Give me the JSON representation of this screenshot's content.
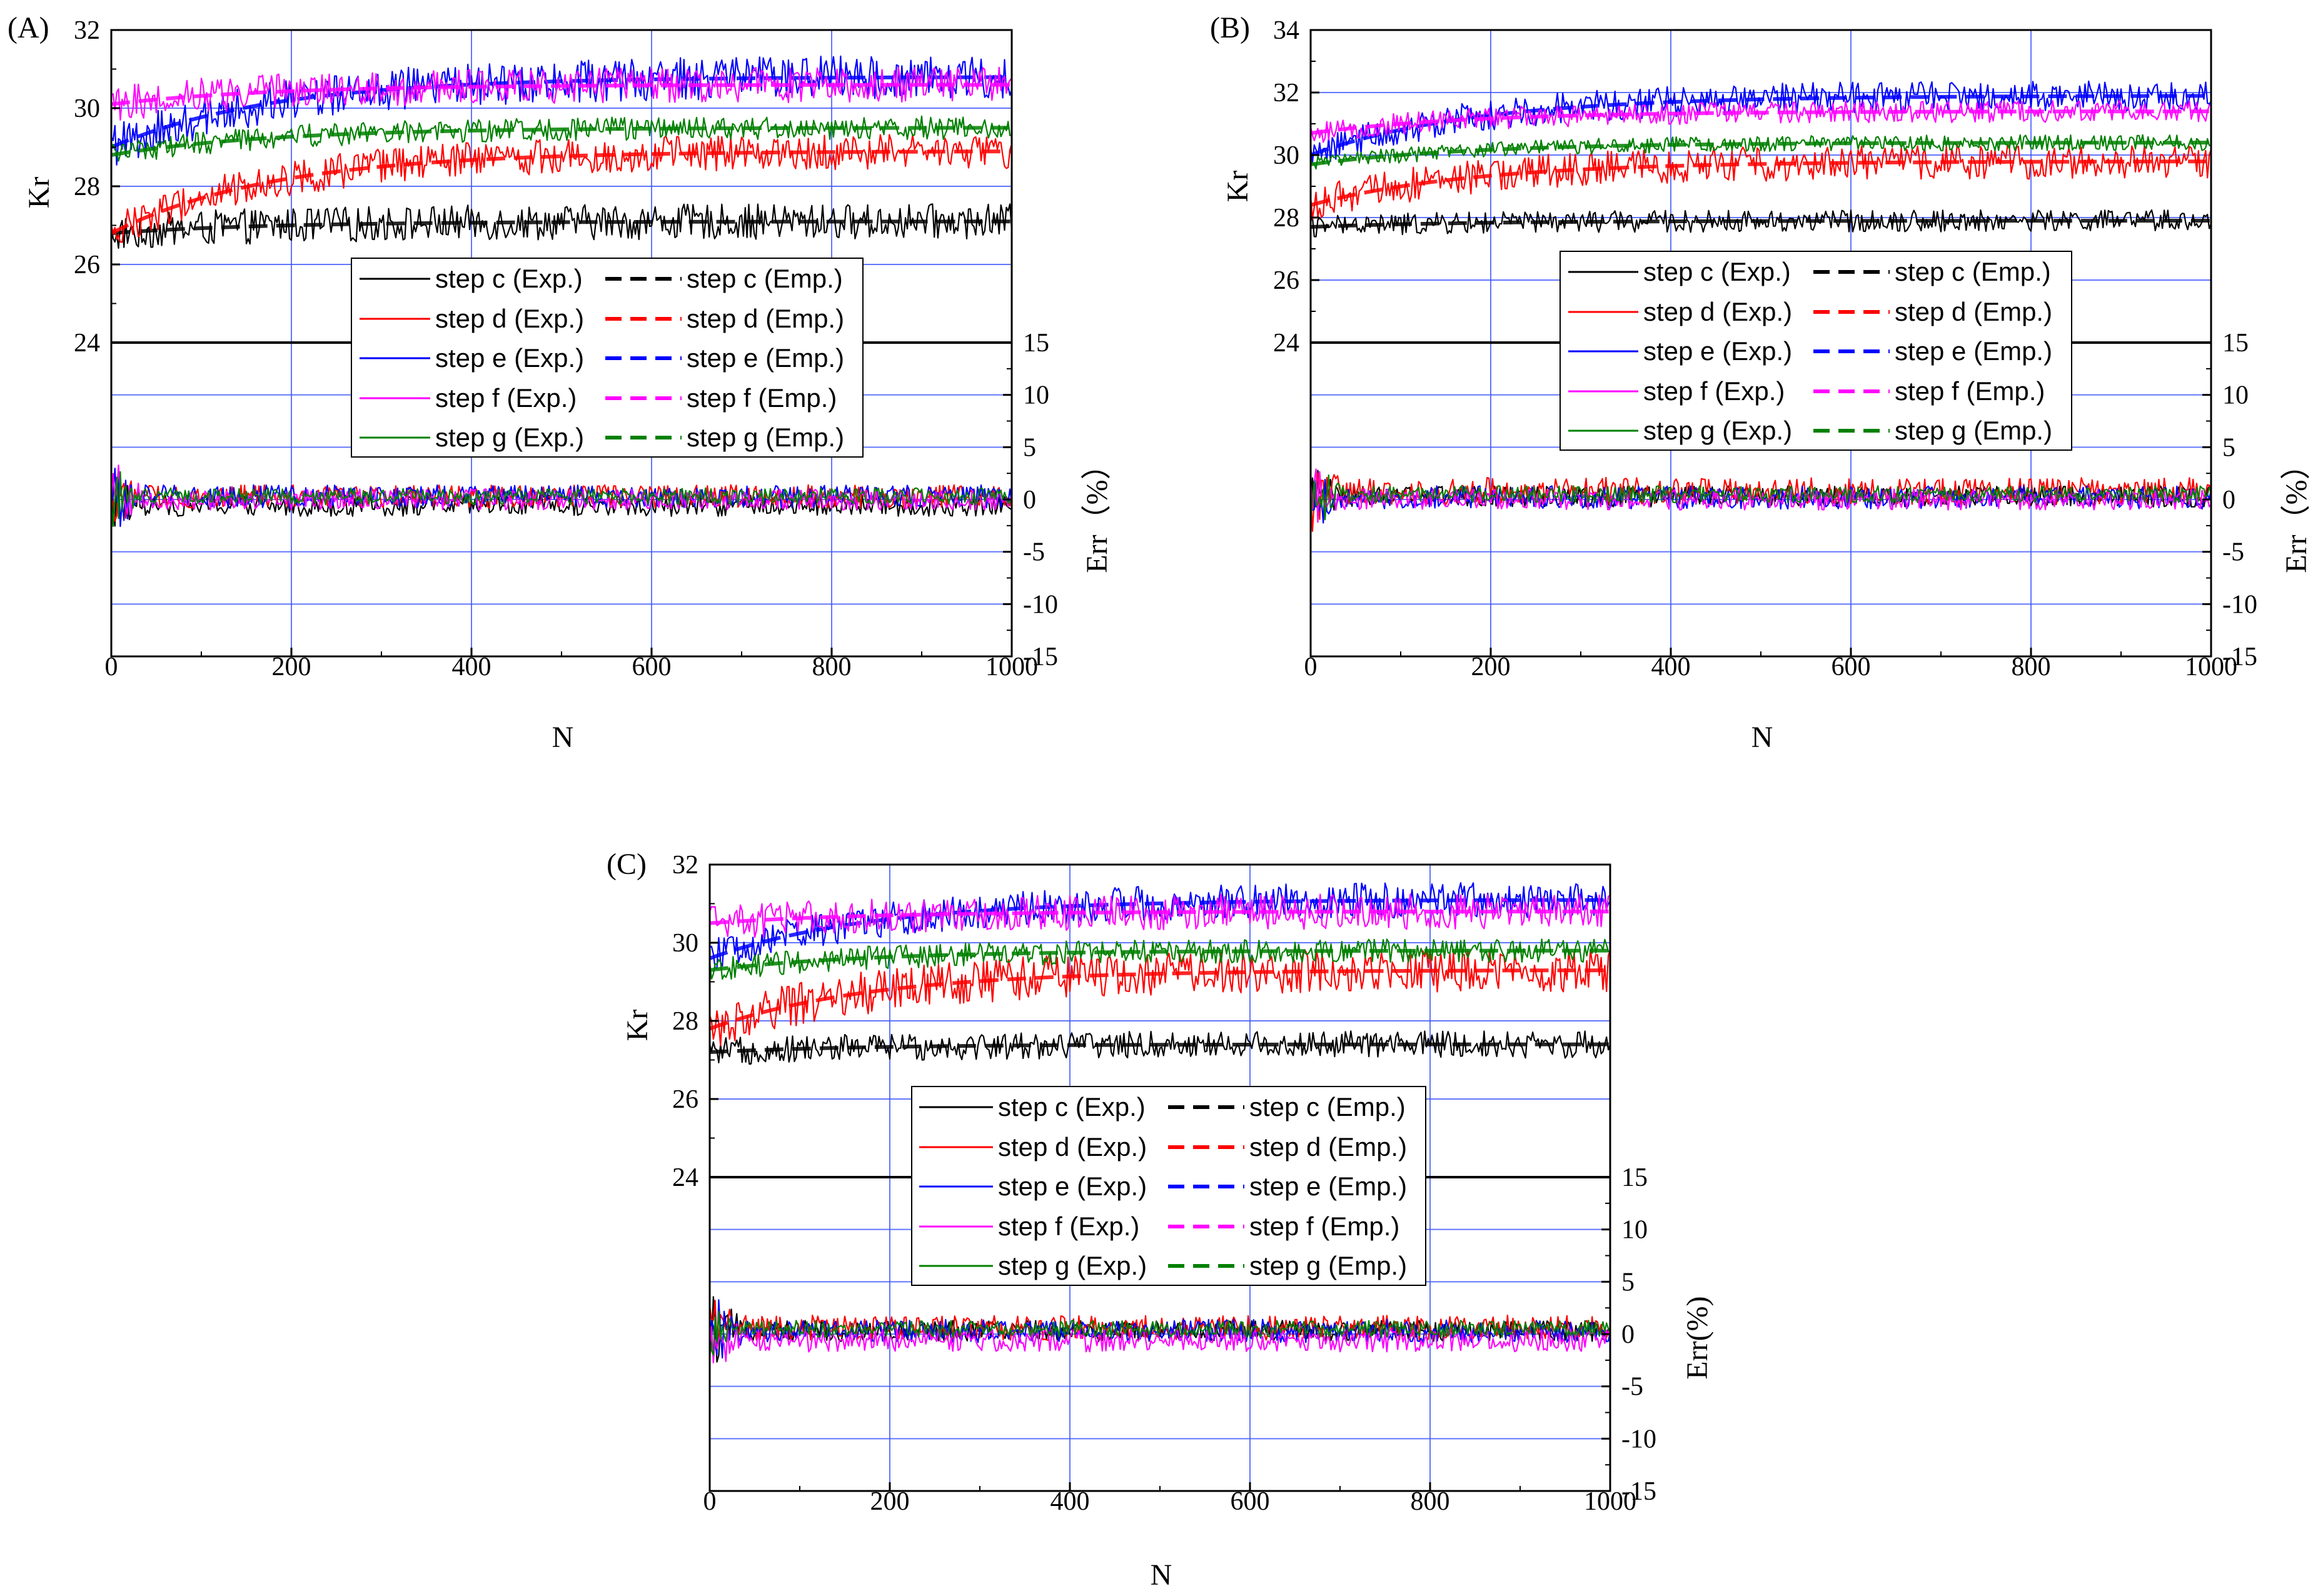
{
  "figure": {
    "series_meta": [
      {
        "key": "c",
        "color": "#000000",
        "exp_label": "step c (Exp.)",
        "emp_label": "step c (Emp.)"
      },
      {
        "key": "d",
        "color": "#ff0000",
        "exp_label": "step d (Exp.)",
        "emp_label": "step d (Emp.)"
      },
      {
        "key": "e",
        "color": "#0000ff",
        "exp_label": "step e (Exp.)",
        "emp_label": "step e (Emp.)"
      },
      {
        "key": "f",
        "color": "#ff00ff",
        "exp_label": "step f (Exp.)",
        "emp_label": "step f (Emp.)"
      },
      {
        "key": "g",
        "color": "#008000",
        "exp_label": "step g (Exp.)",
        "emp_label": "step g (Emp.)"
      }
    ]
  },
  "chart_data": [
    {
      "type": "line",
      "panel": "(A)",
      "xlabel": "N",
      "ylabel_top": "Kr",
      "ylabel_bottom": "Err（%）",
      "x_range": [
        0,
        1000
      ],
      "x_ticks": [
        0,
        200,
        400,
        600,
        800,
        1000
      ],
      "kr_ticks": [
        24,
        26,
        28,
        30,
        32
      ],
      "kr_range": [
        24,
        32
      ],
      "err_ticks": [
        15,
        10,
        5,
        0,
        -5,
        -10,
        -15
      ],
      "err_range": [
        -15,
        15
      ],
      "series": [
        {
          "name": "step c",
          "kr_start": 26.8,
          "kr_end": 27.1,
          "kr_noise": 0.45,
          "err_noise": 1.0,
          "err_offset": -0.6
        },
        {
          "name": "step d",
          "kr_start": 26.8,
          "kr_end": 28.9,
          "kr_noise": 0.45,
          "err_noise": 1.1,
          "err_offset": 0.3
        },
        {
          "name": "step e",
          "kr_start": 29.0,
          "kr_end": 30.8,
          "kr_noise": 0.55,
          "err_noise": 1.1,
          "err_offset": 0.3
        },
        {
          "name": "step f",
          "kr_start": 30.1,
          "kr_end": 30.6,
          "kr_noise": 0.45,
          "err_noise": 1.0,
          "err_offset": 0.0
        },
        {
          "name": "step g",
          "kr_start": 28.8,
          "kr_end": 29.5,
          "kr_noise": 0.3,
          "err_noise": 0.8,
          "err_offset": 0.3
        }
      ]
    },
    {
      "type": "line",
      "panel": "(B)",
      "xlabel": "N",
      "ylabel_top": "Kr",
      "ylabel_bottom": "Err（%）",
      "x_range": [
        0,
        1000
      ],
      "x_ticks": [
        0,
        200,
        400,
        600,
        800,
        1000
      ],
      "kr_ticks": [
        24,
        26,
        28,
        30,
        32,
        34
      ],
      "kr_range": [
        24,
        34
      ],
      "err_ticks": [
        15,
        10,
        5,
        0,
        -5,
        -10,
        -15
      ],
      "err_range": [
        -15,
        15
      ],
      "series": [
        {
          "name": "step c",
          "kr_start": 27.7,
          "kr_end": 27.9,
          "kr_noise": 0.35,
          "err_noise": 1.0,
          "err_offset": 0.3
        },
        {
          "name": "step d",
          "kr_start": 28.4,
          "kr_end": 29.8,
          "kr_noise": 0.55,
          "err_noise": 1.3,
          "err_offset": 0.8
        },
        {
          "name": "step e",
          "kr_start": 30.0,
          "kr_end": 31.9,
          "kr_noise": 0.5,
          "err_noise": 1.1,
          "err_offset": 0.2
        },
        {
          "name": "step f",
          "kr_start": 30.7,
          "kr_end": 31.4,
          "kr_noise": 0.35,
          "err_noise": 1.0,
          "err_offset": 0.0
        },
        {
          "name": "step g",
          "kr_start": 29.7,
          "kr_end": 30.4,
          "kr_noise": 0.25,
          "err_noise": 0.8,
          "err_offset": 0.5
        }
      ]
    },
    {
      "type": "line",
      "panel": "(C)",
      "xlabel": "N",
      "ylabel_top": "Kr",
      "ylabel_bottom": "Err(%)",
      "x_range": [
        0,
        1000
      ],
      "x_ticks": [
        0,
        200,
        400,
        600,
        800,
        1000
      ],
      "kr_ticks": [
        24,
        26,
        28,
        30,
        32
      ],
      "kr_range": [
        24,
        32
      ],
      "err_ticks": [
        15,
        10,
        5,
        0,
        -5,
        -10,
        -15
      ],
      "err_range": [
        -15,
        15
      ],
      "series": [
        {
          "name": "step c",
          "kr_start": 27.2,
          "kr_end": 27.4,
          "kr_noise": 0.35,
          "err_noise": 1.0,
          "err_offset": 0.3
        },
        {
          "name": "step d",
          "kr_start": 27.8,
          "kr_end": 29.3,
          "kr_noise": 0.55,
          "err_noise": 1.2,
          "err_offset": 0.6
        },
        {
          "name": "step e",
          "kr_start": 29.6,
          "kr_end": 31.1,
          "kr_noise": 0.45,
          "err_noise": 1.1,
          "err_offset": 0.3
        },
        {
          "name": "step f",
          "kr_start": 30.5,
          "kr_end": 30.8,
          "kr_noise": 0.45,
          "err_noise": 1.1,
          "err_offset": -0.6
        },
        {
          "name": "step g",
          "kr_start": 29.3,
          "kr_end": 29.8,
          "kr_noise": 0.3,
          "err_noise": 0.8,
          "err_offset": 0.5
        }
      ]
    }
  ]
}
